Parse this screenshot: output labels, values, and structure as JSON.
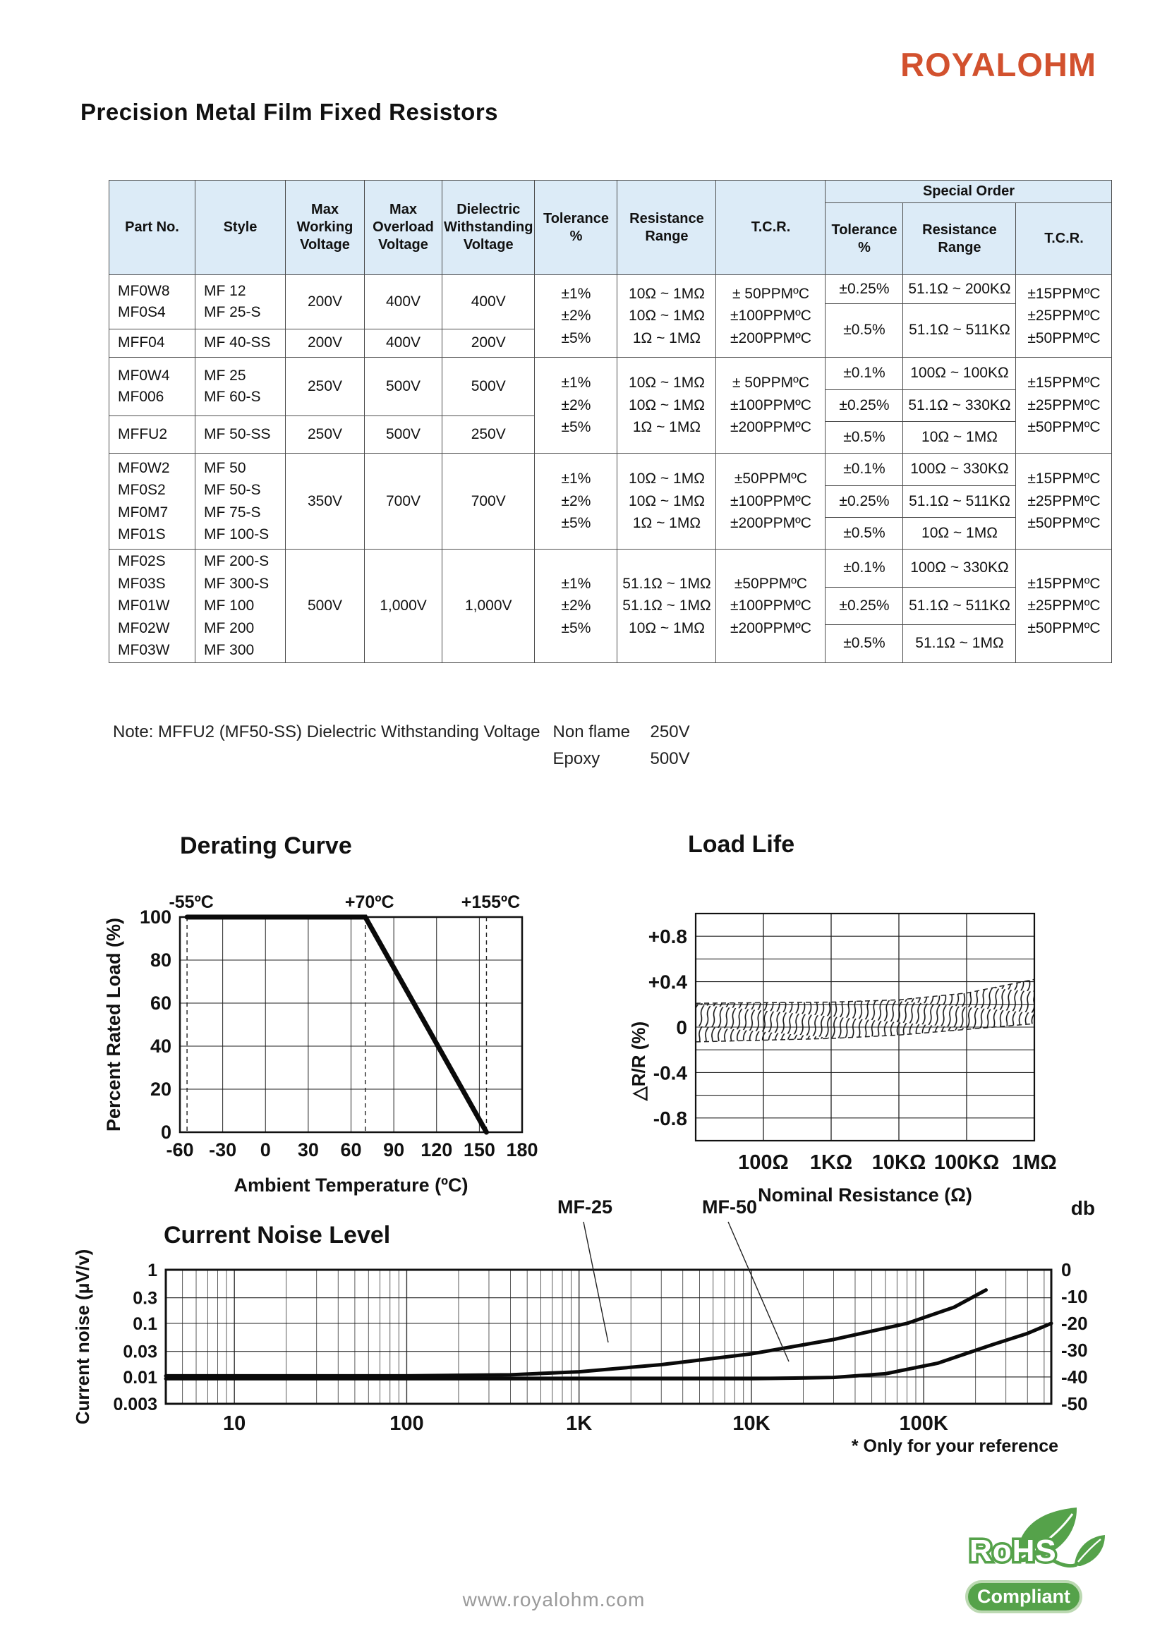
{
  "header": {
    "brand": "ROYALOHM",
    "title": "Precision Metal Film Fixed Resistors"
  },
  "table": {
    "headers": {
      "part": "Part No.",
      "style": "Style",
      "vw": "Max\nWorking\nVoltage",
      "vo": "Max\nOverload\nVoltage",
      "vd": "Dielectric\nWithstanding\nVoltage",
      "tol": "Tolerance\n%",
      "res": "Resistance\nRange",
      "tcr": "T.C.R.",
      "special": "Special Order",
      "s_tol": "Tolerance\n%",
      "s_res": "Resistance\nRange",
      "s_tcr": "T.C.R."
    },
    "groups": [
      {
        "rows": [
          {
            "part": "MF0W8\nMF0S4",
            "style": "MF 12\nMF 25-S",
            "vw": "200V",
            "vo": "400V",
            "vd": "400V"
          },
          {
            "part": "MFF04",
            "style": "MF 40-SS",
            "vw": "200V",
            "vo": "400V",
            "vd": "200V"
          }
        ],
        "tolerance": "±1%\n±2%\n±5%",
        "resistance": "10Ω ~ 1MΩ\n10Ω ~ 1MΩ\n1Ω ~ 1MΩ",
        "tcr": "± 50PPMºC\n±100PPMºC\n±200PPMºC",
        "special": [
          {
            "tol": "±0.25%",
            "res": "51.1Ω ~ 200KΩ"
          },
          {
            "tol": "±0.5%",
            "res": "51.1Ω ~ 511KΩ"
          }
        ],
        "special_tcr": "±15PPMºC\n±25PPMºC\n±50PPMºC"
      },
      {
        "rows": [
          {
            "part": "MF0W4\nMF006",
            "style": "MF 25\nMF 60-S",
            "vw": "250V",
            "vo": "500V",
            "vd": "500V"
          },
          {
            "part": "MFFU2",
            "style": "MF 50-SS",
            "vw": "250V",
            "vo": "500V",
            "vd": "250V"
          }
        ],
        "tolerance": "±1%\n±2%\n±5%",
        "resistance": "10Ω ~ 1MΩ\n10Ω ~ 1MΩ\n1Ω ~ 1MΩ",
        "tcr": "± 50PPMºC\n±100PPMºC\n±200PPMºC",
        "special": [
          {
            "tol": "±0.1%",
            "res": "100Ω ~ 100KΩ"
          },
          {
            "tol": "±0.25%",
            "res": "51.1Ω ~ 330KΩ"
          },
          {
            "tol": "±0.5%",
            "res": "10Ω ~ 1MΩ"
          }
        ],
        "special_tcr": "±15PPMºC\n±25PPMºC\n±50PPMºC"
      },
      {
        "rows": [
          {
            "part": "MF0W2\nMF0S2\nMF0M7\nMF01S",
            "style": "MF 50\nMF 50-S\nMF 75-S\nMF 100-S",
            "vw": "350V",
            "vo": "700V",
            "vd": "700V"
          }
        ],
        "tolerance": "±1%\n±2%\n±5%",
        "resistance": "10Ω ~ 1MΩ\n10Ω ~ 1MΩ\n1Ω ~ 1MΩ",
        "tcr": "±50PPMºC\n±100PPMºC\n±200PPMºC",
        "special": [
          {
            "tol": "±0.1%",
            "res": "100Ω ~ 330KΩ"
          },
          {
            "tol": "±0.25%",
            "res": "51.1Ω ~ 511KΩ"
          },
          {
            "tol": "±0.5%",
            "res": "10Ω ~ 1MΩ"
          }
        ],
        "special_tcr": "±15PPMºC\n±25PPMºC\n±50PPMºC"
      },
      {
        "rows": [
          {
            "part": "MF02S\nMF03S\nMF01W\nMF02W\nMF03W",
            "style": "MF 200-S\nMF 300-S\nMF 100\nMF 200\nMF 300",
            "vw": "500V",
            "vo": "1,000V",
            "vd": "1,000V"
          }
        ],
        "tolerance": "±1%\n±2%\n±5%",
        "resistance": "51.1Ω ~ 1MΩ\n51.1Ω ~ 1MΩ\n10Ω ~ 1MΩ",
        "tcr": "±50PPMºC\n±100PPMºC\n±200PPMºC",
        "special": [
          {
            "tol": "±0.1%",
            "res": "100Ω ~ 330KΩ"
          },
          {
            "tol": "±0.25%",
            "res": "51.1Ω ~ 511KΩ"
          },
          {
            "tol": "±0.5%",
            "res": "51.1Ω ~ 1MΩ"
          }
        ],
        "special_tcr": "±15PPMºC\n±25PPMºC\n±50PPMºC"
      }
    ]
  },
  "note": {
    "prefix": "Note: MFFU2 (MF50-SS) Dielectric Withstanding Voltage",
    "item1": "Non flame",
    "val1": "250V",
    "item2": "Epoxy",
    "val2": "500V"
  },
  "chart_data": [
    {
      "id": "derating",
      "type": "line",
      "title": "Derating Curve",
      "xlabel": "Ambient Temperature (ºC)",
      "ylabel": "Percent Rated Load (%)",
      "xlim": [
        -60,
        180
      ],
      "ylim": [
        0,
        100
      ],
      "xticks": [
        -60,
        -30,
        0,
        30,
        60,
        90,
        120,
        150,
        180
      ],
      "yticks": [
        0,
        20,
        40,
        60,
        80,
        100
      ],
      "grid": true,
      "annotations": [
        {
          "x": -55,
          "label": "-55ºC"
        },
        {
          "x": 70,
          "label": "+70ºC"
        },
        {
          "x": 155,
          "label": "+155ºC"
        }
      ],
      "series": [
        {
          "name": "derating-line",
          "points": [
            [
              -55,
              100
            ],
            [
              70,
              100
            ],
            [
              155,
              0
            ]
          ]
        }
      ]
    },
    {
      "id": "load-life",
      "type": "band",
      "title": "Load Life",
      "xlabel": "Nominal Resistance (Ω)",
      "ylabel": "△R/R (%)",
      "x_scale": "log",
      "xlim": [
        10,
        1000000
      ],
      "ylim": [
        -1,
        1
      ],
      "grid_step_y": 0.2,
      "xticks": [
        {
          "v": 100,
          "label": "100Ω"
        },
        {
          "v": 1000,
          "label": "1KΩ"
        },
        {
          "v": 10000,
          "label": "10KΩ"
        },
        {
          "v": 100000,
          "label": "100KΩ"
        },
        {
          "v": 1000000,
          "label": "1MΩ"
        }
      ],
      "yticks": [
        {
          "v": 0.8,
          "label": "+0.8"
        },
        {
          "v": 0.4,
          "label": "+0.4"
        },
        {
          "v": 0,
          "label": "0"
        },
        {
          "v": -0.4,
          "label": "-0.4"
        },
        {
          "v": -0.8,
          "label": "-0.8"
        }
      ],
      "band": {
        "upper": [
          [
            10,
            0.21
          ],
          [
            1000,
            0.22
          ],
          [
            10000,
            0.24
          ],
          [
            100000,
            0.3
          ],
          [
            1000000,
            0.42
          ]
        ],
        "lower": [
          [
            10,
            -0.13
          ],
          [
            1000,
            -0.1
          ],
          [
            10000,
            -0.07
          ],
          [
            100000,
            -0.02
          ],
          [
            1000000,
            0.03
          ]
        ]
      }
    },
    {
      "id": "current-noise",
      "type": "line",
      "title": "Current Noise Level",
      "ylabel": "Current noise (μV/v)",
      "ylabel_right": "db",
      "x_scale": "log",
      "y_scale": "log",
      "xlim": [
        4,
        550000
      ],
      "ylim": [
        0.00316,
        1
      ],
      "xticks": [
        {
          "v": 10,
          "label": "10"
        },
        {
          "v": 100,
          "label": "100"
        },
        {
          "v": 1000,
          "label": "1K"
        },
        {
          "v": 10000,
          "label": "10K"
        },
        {
          "v": 100000,
          "label": "100K"
        }
      ],
      "yticks_left": [
        {
          "v": 1,
          "label": "1"
        },
        {
          "v": 0.3,
          "label": "0.3"
        },
        {
          "v": 0.1,
          "label": "0.1"
        },
        {
          "v": 0.03,
          "label": "0.03"
        },
        {
          "v": 0.01,
          "label": "0.01"
        },
        {
          "v": 0.003,
          "label": "0.003"
        }
      ],
      "yticks_right": [
        {
          "db": 0,
          "label": "0"
        },
        {
          "db": -10,
          "label": "-10"
        },
        {
          "db": -20,
          "label": "-20"
        },
        {
          "db": -30,
          "label": "-30"
        },
        {
          "db": -40,
          "label": "-40"
        },
        {
          "db": -50,
          "label": "-50"
        }
      ],
      "series": [
        {
          "name": "MF-25",
          "points": [
            [
              4,
              0.0105
            ],
            [
              100,
              0.0105
            ],
            [
              400,
              0.011
            ],
            [
              1000,
              0.0125
            ],
            [
              3000,
              0.017
            ],
            [
              10000,
              0.027
            ],
            [
              30000,
              0.05
            ],
            [
              80000,
              0.1
            ],
            [
              150000,
              0.2
            ],
            [
              230000,
              0.42
            ]
          ]
        },
        {
          "name": "MF-50",
          "points": [
            [
              4,
              0.0093
            ],
            [
              10000,
              0.0093
            ],
            [
              30000,
              0.0098
            ],
            [
              60000,
              0.0115
            ],
            [
              120000,
              0.018
            ],
            [
              250000,
              0.04
            ],
            [
              400000,
              0.065
            ],
            [
              550000,
              0.1
            ]
          ]
        }
      ],
      "footnote": "* Only for your reference"
    }
  ],
  "footer": {
    "url": "www.royalohm.com",
    "rohs_line1": "RoHS",
    "rohs_line2": "Compliant"
  }
}
